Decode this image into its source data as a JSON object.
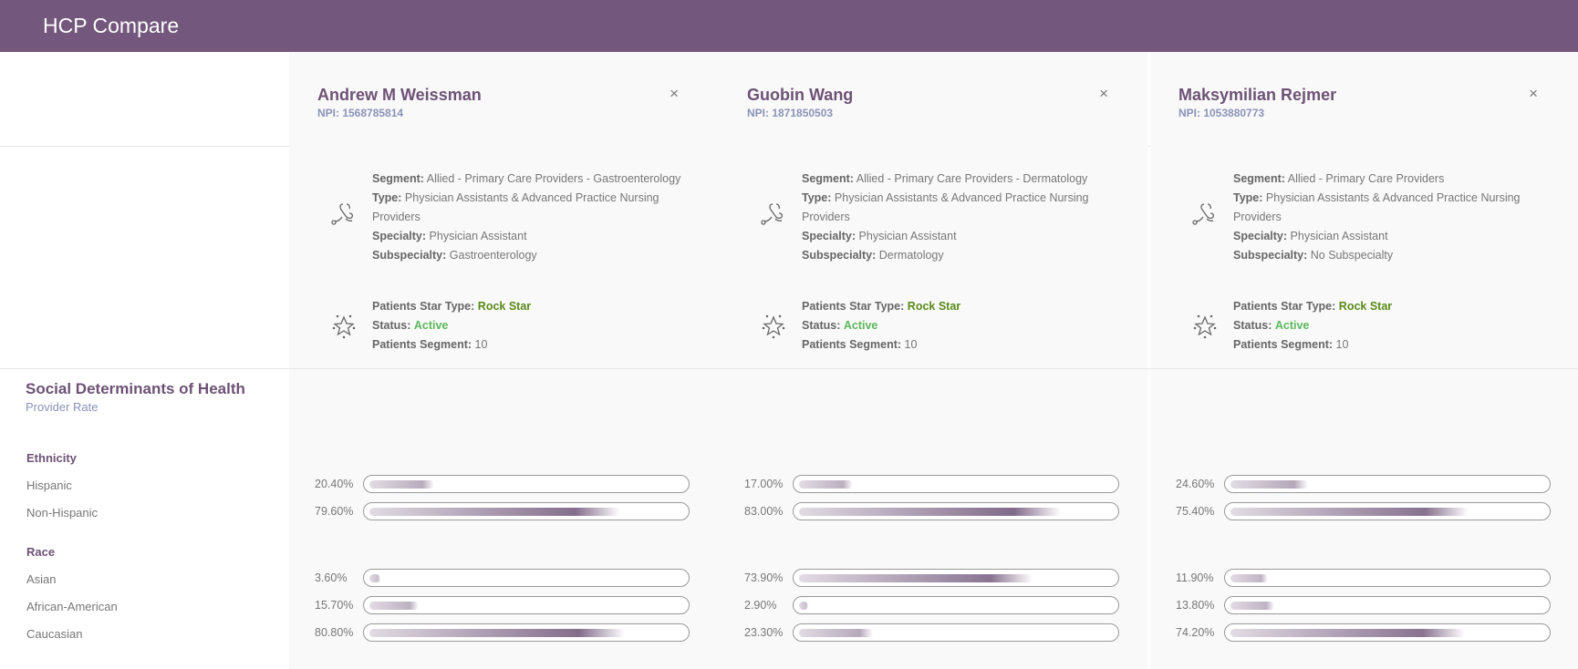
{
  "header": {
    "title": "HCP Compare"
  },
  "labels": {
    "segment": "Segment:",
    "type": "Type:",
    "specialty": "Specialty:",
    "subspecialty": "Subspecialty:",
    "star_type": "Patients Star Type:",
    "status": "Status:",
    "patients_segment": "Patients Segment:",
    "close": "×"
  },
  "providers": [
    {
      "name": "Andrew M Weissman",
      "npi": "NPI: 1568785814",
      "segment": "Allied - Primary Care Providers - Gastroenterology",
      "type": "Physician Assistants & Advanced Practice Nursing Providers",
      "specialty": "Physician Assistant",
      "subspecialty": "Gastroenterology",
      "star_type": "Rock Star",
      "status": "Active",
      "patients_segment": "10",
      "rates": {
        "hispanic": 20.4,
        "non_hispanic": 79.6,
        "asian": 3.6,
        "african_american": 15.7,
        "caucasian": 80.8
      },
      "rate_labels": {
        "hispanic": "20.40%",
        "non_hispanic": "79.60%",
        "asian": "3.60%",
        "african_american": "15.70%",
        "caucasian": "80.80%"
      }
    },
    {
      "name": "Guobin Wang",
      "npi": "NPI: 1871850503",
      "segment": "Allied - Primary Care Providers - Dermatology",
      "type": "Physician Assistants & Advanced Practice Nursing Providers",
      "specialty": "Physician Assistant",
      "subspecialty": "Dermatology",
      "star_type": "Rock Star",
      "status": "Active",
      "patients_segment": "10",
      "rates": {
        "hispanic": 17.0,
        "non_hispanic": 83.0,
        "asian": 73.9,
        "african_american": 2.9,
        "caucasian": 23.3
      },
      "rate_labels": {
        "hispanic": "17.00%",
        "non_hispanic": "83.00%",
        "asian": "73.90%",
        "african_american": "2.90%",
        "caucasian": "23.30%"
      }
    },
    {
      "name": "Maksymilian Rejmer",
      "npi": "NPI: 1053880773",
      "segment": "Allied - Primary Care Providers",
      "type": "Physician Assistants & Advanced Practice Nursing Providers",
      "specialty": "Physician Assistant",
      "subspecialty": "No Subspecialty",
      "star_type": "Rock Star",
      "status": "Active",
      "patients_segment": "10",
      "rates": {
        "hispanic": 24.6,
        "non_hispanic": 75.4,
        "asian": 11.9,
        "african_american": 13.8,
        "caucasian": 74.2
      },
      "rate_labels": {
        "hispanic": "24.60%",
        "non_hispanic": "75.40%",
        "asian": "11.90%",
        "african_american": "13.80%",
        "caucasian": "74.20%"
      }
    }
  ],
  "sdoh": {
    "title": "Social Determinants of Health",
    "subtitle": "Provider Rate",
    "groups": {
      "ethnicity": "Ethnicity",
      "race": "Race"
    },
    "rows": {
      "hispanic": "Hispanic",
      "non_hispanic": "Non-Hispanic",
      "asian": "Asian",
      "african_american": "African-American",
      "caucasian": "Caucasian"
    }
  },
  "colors": {
    "brand": "#74577c",
    "bar_dark": "#6a4f74",
    "active": "#5cb85c",
    "rock_star": "#5a8a1a"
  }
}
